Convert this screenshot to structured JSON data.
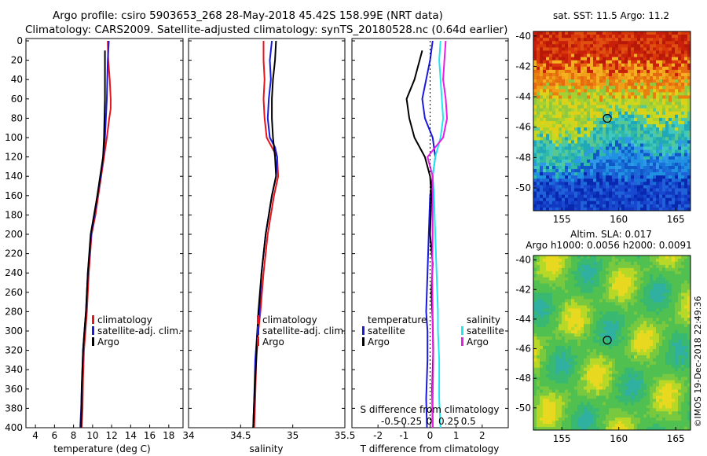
{
  "title": {
    "line1": "Argo profile: csiro 5903653_268 28-May-2018 45.42S 158.99E (NRT data)",
    "line2": "Climatology: CARS2009. Satellite-adjusted climatology: synTS_20180528.nc (0.64d earlier)"
  },
  "colors": {
    "climatology": "#e8141c",
    "satellite": "#1a1adc",
    "argo": "#000000",
    "sal_satellite": "#22e6f0",
    "sal_climatology": "#e61ee6"
  },
  "chart_data": [
    {
      "type": "line",
      "name": "temperature",
      "xlabel": "temperature (deg C)",
      "ylabel": "",
      "xlim": [
        3,
        19.5
      ],
      "ylim": [
        400,
        0
      ],
      "xticks": [
        "4",
        "6",
        "8",
        "10",
        "12",
        "14",
        "16",
        "18"
      ],
      "xtick_values": [
        4,
        6,
        8,
        10,
        12,
        14,
        16,
        18
      ],
      "yticks": [
        "0",
        "20",
        "40",
        "60",
        "80",
        "100",
        "120",
        "140",
        "160",
        "180",
        "200",
        "220",
        "240",
        "260",
        "280",
        "300",
        "320",
        "340",
        "360",
        "380",
        "400"
      ],
      "ytick_values": [
        0,
        20,
        40,
        60,
        80,
        100,
        120,
        140,
        160,
        180,
        200,
        220,
        240,
        260,
        280,
        300,
        320,
        340,
        360,
        380,
        400
      ],
      "legend": [
        "climatology",
        "satellite-adj. clim.",
        "Argo"
      ],
      "series": [
        {
          "name": "climatology",
          "color": "#e8141c",
          "x": [
            11.6,
            11.65,
            11.8,
            11.9,
            11.9,
            11.75,
            11.5,
            11.2,
            10.9,
            10.6,
            10.3,
            9.9,
            9.6,
            9.4,
            9.25,
            9.1,
            9.0,
            8.95,
            8.85
          ],
          "y": [
            0,
            20,
            40,
            60,
            70,
            80,
            100,
            120,
            140,
            160,
            180,
            200,
            240,
            280,
            300,
            320,
            350,
            380,
            400
          ]
        },
        {
          "name": "satellite-adj. clim.",
          "color": "#1a1adc",
          "x": [
            11.7,
            11.6,
            11.55,
            11.5,
            11.45,
            11.4,
            11.3,
            11.1,
            10.85,
            10.5,
            10.2,
            9.85,
            9.5,
            9.3,
            9.15,
            9.0,
            8.9,
            8.8,
            8.7
          ],
          "y": [
            0,
            20,
            40,
            60,
            70,
            80,
            100,
            120,
            140,
            160,
            180,
            200,
            240,
            280,
            300,
            320,
            350,
            380,
            400
          ]
        },
        {
          "name": "Argo",
          "color": "#000000",
          "x": [
            11.3,
            11.3,
            11.3,
            11.3,
            11.25,
            11.2,
            11.1,
            10.8,
            10.5,
            10.15,
            9.8,
            9.5,
            9.3,
            9.15,
            9.0,
            8.85,
            8.8
          ],
          "y": [
            10,
            20,
            40,
            60,
            80,
            100,
            120,
            140,
            160,
            180,
            200,
            240,
            280,
            300,
            320,
            360,
            400
          ]
        }
      ]
    },
    {
      "type": "line",
      "name": "salinity",
      "xlabel": "salinity",
      "ylabel": "",
      "xlim": [
        34,
        35.5
      ],
      "ylim": [
        400,
        0
      ],
      "xticks": [
        "34",
        "34.5",
        "35",
        "35.5"
      ],
      "xtick_values": [
        34,
        34.5,
        35,
        35.5
      ],
      "legend": [
        "climatology",
        "satellite-adj. clim.",
        "Argo"
      ],
      "series": [
        {
          "name": "climatology",
          "color": "#e8141c",
          "x": [
            34.72,
            34.72,
            34.73,
            34.72,
            34.73,
            34.75,
            34.8,
            34.85,
            34.86,
            34.82,
            34.79,
            34.76,
            34.72,
            34.69,
            34.67,
            34.65,
            34.64,
            34.63
          ],
          "y": [
            0,
            20,
            40,
            60,
            80,
            100,
            110,
            120,
            140,
            160,
            180,
            200,
            240,
            280,
            300,
            330,
            370,
            400
          ]
        },
        {
          "name": "satellite-adj. clim.",
          "color": "#1a1adc",
          "x": [
            34.8,
            34.78,
            34.79,
            34.77,
            34.76,
            34.78,
            34.83,
            34.85,
            34.84,
            34.8,
            34.77,
            34.74,
            34.7,
            34.68,
            34.66,
            34.64,
            34.63,
            34.62
          ],
          "y": [
            0,
            20,
            40,
            60,
            80,
            100,
            110,
            120,
            140,
            160,
            180,
            200,
            240,
            280,
            300,
            330,
            370,
            400
          ]
        },
        {
          "name": "Argo",
          "color": "#000000",
          "x": [
            34.84,
            34.83,
            34.81,
            34.8,
            34.8,
            34.81,
            34.82,
            34.83,
            34.84,
            34.8,
            34.77,
            34.74,
            34.7,
            34.67,
            34.66,
            34.65,
            34.63,
            34.62
          ],
          "y": [
            0,
            20,
            40,
            60,
            80,
            100,
            110,
            120,
            140,
            160,
            180,
            200,
            240,
            280,
            300,
            330,
            370,
            400
          ]
        }
      ]
    },
    {
      "type": "line",
      "name": "differences",
      "xlabel": "T difference from climatology",
      "ylabel": "",
      "xlim": [
        -3,
        3
      ],
      "ylim": [
        400,
        0
      ],
      "xticks": [
        "-2",
        "-1",
        "0",
        "1",
        "2"
      ],
      "xtick_values": [
        -2,
        -1,
        0,
        1,
        2
      ],
      "top_axis_label": "S difference from climatology",
      "top_ticks": [
        "-0.5",
        "-0.25",
        "0",
        "0.25",
        "0.5"
      ],
      "legend_left_title": "temperature",
      "legend_left": [
        "satellite",
        "Argo"
      ],
      "legend_right_title": "salinity",
      "legend_right": [
        "satellite",
        "Argo"
      ],
      "series": [
        {
          "name": "T satellite",
          "color": "#1a1adc",
          "x": [
            0.1,
            0.0,
            -0.15,
            -0.3,
            -0.2,
            0.1,
            0.2,
            0.1,
            0.0,
            -0.05,
            -0.1,
            -0.15,
            -0.1,
            -0.1,
            -0.15,
            -0.12
          ],
          "y": [
            0,
            20,
            40,
            60,
            80,
            100,
            120,
            140,
            160,
            200,
            240,
            280,
            300,
            330,
            370,
            400
          ]
        },
        {
          "name": "T Argo",
          "color": "#000000",
          "x": [
            -0.3,
            -0.4,
            -0.6,
            -0.9,
            -0.8,
            -0.6,
            -0.2,
            0.0,
            0.05,
            0.0,
            0.1,
            0.05,
            0.1,
            0.12,
            0.08,
            0.1
          ],
          "y": [
            10,
            20,
            40,
            60,
            80,
            100,
            120,
            140,
            160,
            200,
            230,
            260,
            290,
            320,
            360,
            400
          ]
        },
        {
          "name": "S satellite",
          "color": "#22e6f0",
          "x": [
            0.4,
            0.35,
            0.4,
            0.45,
            0.5,
            0.4,
            0.2,
            0.1,
            0.15,
            0.2,
            0.25,
            0.3,
            0.3,
            0.35,
            0.35,
            0.4
          ],
          "y": [
            0,
            20,
            40,
            60,
            80,
            100,
            120,
            140,
            160,
            200,
            240,
            280,
            300,
            330,
            370,
            400
          ]
        },
        {
          "name": "S Argo",
          "color": "#e61ee6",
          "x": [
            0.6,
            0.55,
            0.5,
            0.6,
            0.65,
            0.5,
            -0.1,
            0.1,
            0.1,
            0.1,
            0.08,
            0.1,
            0.1,
            0.12,
            0.1,
            0.1
          ],
          "y": [
            0,
            20,
            40,
            60,
            80,
            100,
            120,
            140,
            160,
            200,
            240,
            280,
            300,
            330,
            370,
            400
          ]
        }
      ]
    },
    {
      "type": "heatmap",
      "name": "sst-map",
      "title": "sat. SST: 11.5 Argo: 11.2",
      "xticks": [
        "155",
        "160",
        "165"
      ],
      "xtick_values": [
        155,
        160,
        165
      ],
      "yticks": [
        "-40",
        "-42",
        "-44",
        "-46",
        "-48",
        "-50"
      ],
      "ytick_values": [
        -40,
        -42,
        -44,
        -46,
        -48,
        -50
      ],
      "xlim": [
        152.5,
        166.3
      ],
      "ylim": [
        -51.5,
        -39.7
      ],
      "marker": {
        "lon": 158.99,
        "lat": -45.42
      }
    },
    {
      "type": "heatmap",
      "name": "sla-map",
      "title_line1": "Altim. SLA: 0.017",
      "title_line2": "Argo h1000: 0.0056 h2000: 0.0091",
      "xticks": [
        "155",
        "160",
        "165"
      ],
      "xtick_values": [
        155,
        160,
        165
      ],
      "yticks": [
        "-40",
        "-42",
        "-44",
        "-46",
        "-48",
        "-50"
      ],
      "ytick_values": [
        -40,
        -42,
        -44,
        -46,
        -48,
        -50
      ],
      "xlim": [
        152.5,
        166.3
      ],
      "ylim": [
        -51.5,
        -39.7
      ],
      "marker": {
        "lon": 158.99,
        "lat": -45.42
      }
    }
  ],
  "credit": "©IMOS 19-Dec-2018 22:49:36"
}
